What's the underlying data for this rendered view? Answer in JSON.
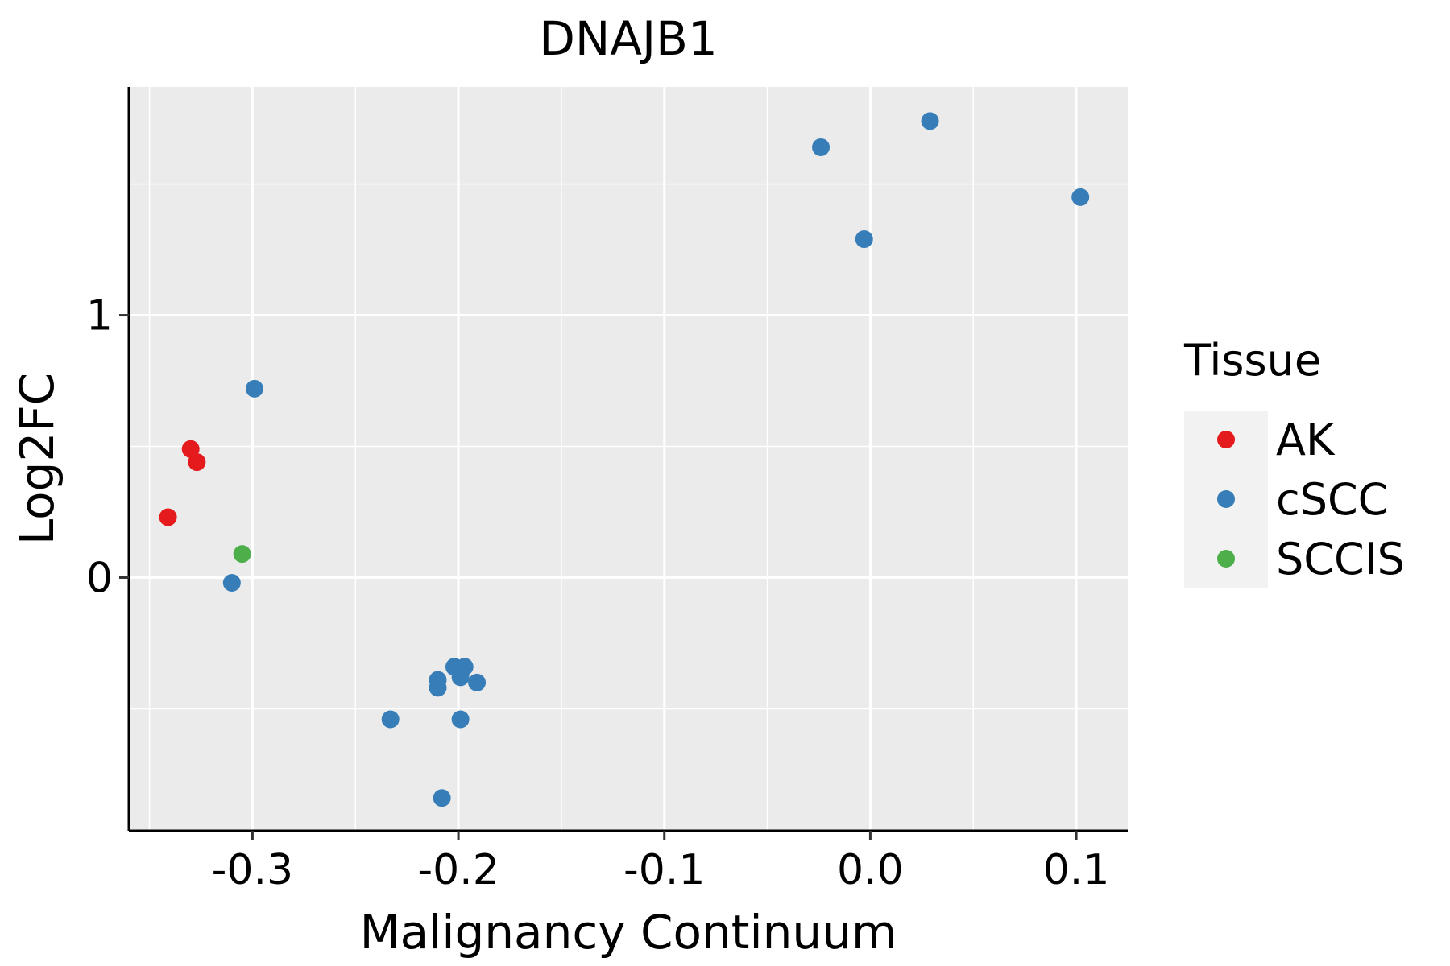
{
  "chart_data": {
    "type": "scatter",
    "title": "DNAJB1",
    "xlabel": "Malignancy Continuum",
    "ylabel": "Log2FC",
    "xlim": [
      -0.36,
      0.125
    ],
    "ylim": [
      -0.965,
      1.87
    ],
    "x_ticks": [
      -0.3,
      -0.2,
      -0.1,
      0.0,
      0.1
    ],
    "x_tick_labels": [
      "-0.3",
      "-0.2",
      "-0.1",
      "0.0",
      "0.1"
    ],
    "y_ticks": [
      0,
      1
    ],
    "y_tick_labels": [
      "0",
      "1"
    ],
    "legend": {
      "title": "Tissue",
      "position": "right",
      "entries": [
        {
          "label": "AK",
          "color": "#E41A1C"
        },
        {
          "label": "cSCC",
          "color": "#377EB8"
        },
        {
          "label": "SCCIS",
          "color": "#4DAF4A"
        }
      ]
    },
    "series": [
      {
        "name": "AK",
        "color": "#E41A1C",
        "points": [
          {
            "x": -0.341,
            "y": 0.23
          },
          {
            "x": -0.33,
            "y": 0.49
          },
          {
            "x": -0.327,
            "y": 0.44
          }
        ]
      },
      {
        "name": "cSCC",
        "color": "#377EB8",
        "points": [
          {
            "x": -0.299,
            "y": 0.72
          },
          {
            "x": -0.31,
            "y": -0.02
          },
          {
            "x": -0.233,
            "y": -0.54
          },
          {
            "x": -0.21,
            "y": -0.39
          },
          {
            "x": -0.21,
            "y": -0.42
          },
          {
            "x": -0.208,
            "y": -0.84
          },
          {
            "x": -0.202,
            "y": -0.34
          },
          {
            "x": -0.199,
            "y": -0.38
          },
          {
            "x": -0.197,
            "y": -0.34
          },
          {
            "x": -0.199,
            "y": -0.54
          },
          {
            "x": -0.191,
            "y": -0.4
          },
          {
            "x": -0.024,
            "y": 1.64
          },
          {
            "x": -0.003,
            "y": 1.29
          },
          {
            "x": 0.029,
            "y": 1.74
          },
          {
            "x": 0.102,
            "y": 1.45
          }
        ]
      },
      {
        "name": "SCCIS",
        "color": "#4DAF4A",
        "points": [
          {
            "x": -0.305,
            "y": 0.09
          }
        ]
      }
    ]
  }
}
